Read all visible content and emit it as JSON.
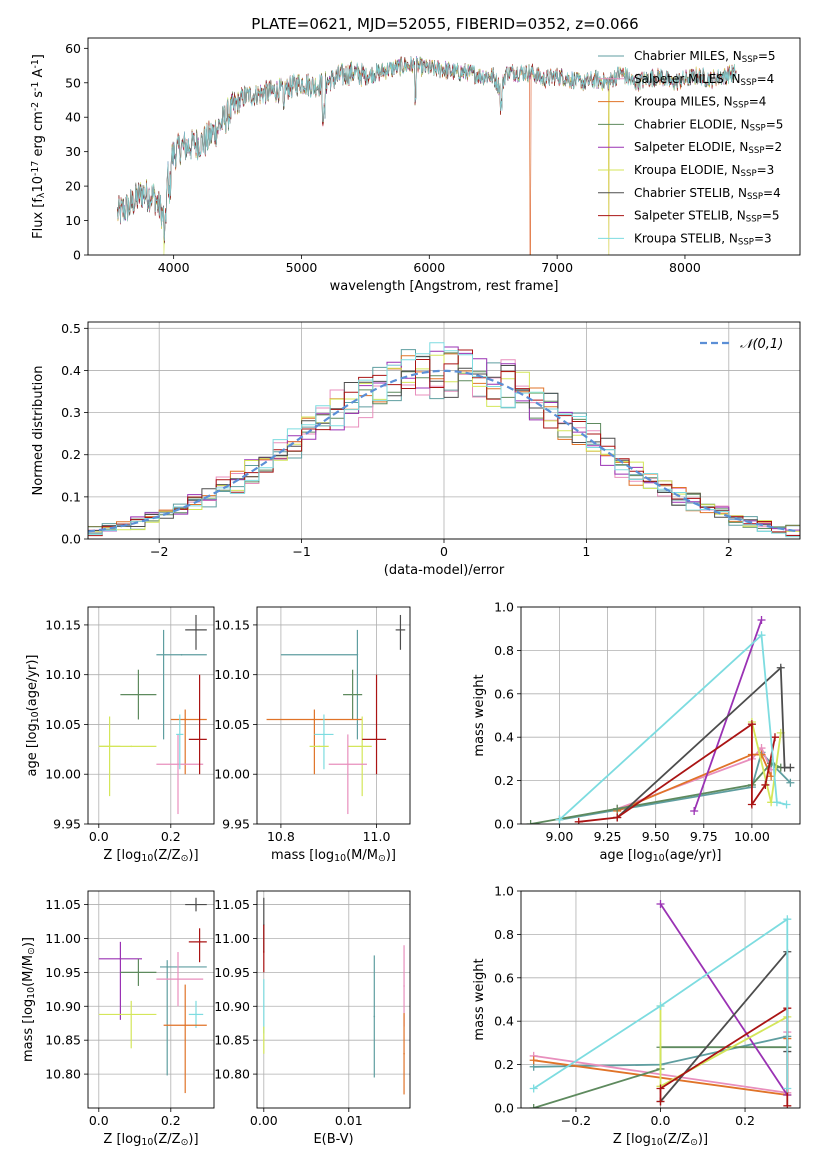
{
  "figure": {
    "title": "PLATE=0621, MJD=52055, FIBERID=0352, z=0.066"
  },
  "series_meta": [
    {
      "name": "Chabrier MILES, N$_{SSP}$=5",
      "color": "#5f9ea0"
    },
    {
      "name": "Salpeter MILES, N$_{SSP}$=4",
      "color": "#e88fbd"
    },
    {
      "name": "Kroupa MILES, N$_{SSP}$=4",
      "color": "#e07328"
    },
    {
      "name": "Chabrier ELODIE, N$_{SSP}$=5",
      "color": "#5e8a5e"
    },
    {
      "name": "Salpeter ELODIE, N$_{SSP}$=2",
      "color": "#9a32b4"
    },
    {
      "name": "Kroupa ELODIE, N$_{SSP}$=3",
      "color": "#d4e65a"
    },
    {
      "name": "Chabrier STELIB, N$_{SSP}$=4",
      "color": "#4d4d4d"
    },
    {
      "name": "Salpeter STELIB, N$_{SSP}$=5",
      "color": "#aa1414"
    },
    {
      "name": "Kroupa STELIB, N$_{SSP}$=3",
      "color": "#7ddce0"
    }
  ],
  "chart_data": [
    {
      "id": "spectrum",
      "type": "line",
      "xlabel": "wavelength [Angstrom, rest frame]",
      "ylabel": "Flux [f$_\\lambda$10$^{-17}$ erg cm$^{-2}$ s$^{-1}$ A$^{-1}$]",
      "xlim": [
        3330,
        8900
      ],
      "ylim": [
        0,
        63
      ],
      "xticks": [
        4000,
        5000,
        6000,
        7000,
        8000
      ],
      "yticks": [
        0,
        10,
        20,
        30,
        40,
        50,
        60
      ],
      "grid": false,
      "legend": "right",
      "x": [
        3560,
        3650,
        3750,
        3850,
        3920,
        3970,
        4050,
        4150,
        4250,
        4350,
        4450,
        4550,
        4700,
        4860,
        5000,
        5100,
        5200,
        5300,
        5400,
        5500,
        5600,
        5700,
        5800,
        5900,
        6000,
        6100,
        6200,
        6300,
        6400,
        6500,
        6560,
        6600,
        6700,
        6800,
        6900,
        7000,
        7100,
        7200,
        7300,
        7400,
        7500,
        7600,
        7700,
        7800,
        7900,
        8000,
        8100,
        8200,
        8300,
        8400
      ],
      "y": [
        12,
        14,
        18,
        17,
        11,
        28,
        31,
        32,
        33,
        37,
        42,
        46,
        47,
        48,
        50,
        49,
        50,
        52,
        53,
        52,
        53,
        54,
        55,
        55,
        54,
        54,
        53,
        53,
        52,
        52,
        48,
        53,
        53,
        53,
        51,
        52,
        51,
        50,
        51,
        50,
        53,
        50,
        51,
        52,
        50,
        51,
        52,
        51,
        52,
        53
      ],
      "dropouts": [
        {
          "x": 3925,
          "series": [
            5
          ]
        },
        {
          "x": 6790,
          "series": [
            1,
            2
          ]
        },
        {
          "x": 7405,
          "series": [
            2,
            5
          ]
        }
      ]
    },
    {
      "id": "residuals",
      "type": "histogram",
      "xlabel": "(data-model)/error",
      "ylabel": "Normed distribution",
      "xlim": [
        -2.5,
        2.5
      ],
      "ylim": [
        0,
        0.515
      ],
      "xticks": [
        -2,
        -1,
        0,
        1,
        2
      ],
      "yticks": [
        0.0,
        0.1,
        0.2,
        0.3,
        0.4,
        0.5
      ],
      "grid": true,
      "bin_width": 0.1,
      "reference": {
        "label": "$\\mathcal{N}(0,1)$",
        "color": "#5b8fd6",
        "mu": 0,
        "sigma": 1
      }
    },
    {
      "id": "age-vs-Z",
      "type": "scatter",
      "xlabel": "Z [log$_{10}$($Z/Z_\\odot$)]",
      "ylabel": "age  [log$_{10}$($age/yr$)]",
      "xlim": [
        -0.03,
        0.32
      ],
      "ylim": [
        9.95,
        10.168
      ],
      "xticks": [
        0.0,
        0.2
      ],
      "yticks": [
        9.95,
        10.0,
        10.05,
        10.1,
        10.15
      ],
      "grid": true,
      "points": [
        {
          "s": 3,
          "x": 0.11,
          "y": 10.08,
          "xe": [
            0.05,
            0.05
          ],
          "ye": [
            0.025,
            0.025
          ]
        },
        {
          "s": 5,
          "x": 0.03,
          "y": 10.028,
          "xe": [
            0.03,
            0.03
          ],
          "ye": [
            0.05,
            0.03
          ]
        },
        {
          "s": 5,
          "x": 0.09,
          "y": 10.028,
          "xe": [
            0.09,
            0.07
          ],
          "ye": [
            0,
            0
          ]
        },
        {
          "s": 0,
          "x": 0.23,
          "y": 10.12,
          "xe": [
            0.07,
            0.07
          ],
          "ye": [
            0,
            0
          ]
        },
        {
          "s": 0,
          "x": 0.18,
          "y": 10.12,
          "xe": [
            0,
            0
          ],
          "ye": [
            0.085,
            0.025
          ]
        },
        {
          "s": 6,
          "x": 0.27,
          "y": 10.145,
          "xe": [
            0.03,
            0.03
          ],
          "ye": [
            0.02,
            0.015
          ]
        },
        {
          "s": 2,
          "x": 0.24,
          "y": 10.055,
          "xe": [
            0.04,
            0.06
          ],
          "ye": [
            0.055,
            0.01
          ]
        },
        {
          "s": 1,
          "x": 0.22,
          "y": 10.01,
          "xe": [
            0.06,
            0.07
          ],
          "ye": [
            0.05,
            0.03
          ]
        },
        {
          "s": 7,
          "x": 0.28,
          "y": 10.035,
          "xe": [
            0.03,
            0.02
          ],
          "ye": [
            0.035,
            0.065
          ]
        },
        {
          "s": 8,
          "x": 0.225,
          "y": 10.04,
          "xe": [
            0.01,
            0.01
          ],
          "ye": [
            0.035,
            0.02
          ]
        }
      ]
    },
    {
      "id": "age-vs-mass",
      "type": "scatter",
      "xlabel": "mass [log$_{10}$($M/M_\\odot$)]",
      "ylabel": "",
      "xlim": [
        10.75,
        11.07
      ],
      "ylim": [
        9.95,
        10.168
      ],
      "xticks": [
        10.8,
        11.0
      ],
      "yticks": [
        9.95,
        10.0,
        10.05,
        10.1,
        10.15
      ],
      "grid": true,
      "points": [
        {
          "s": 0,
          "x": 10.96,
          "y": 10.12,
          "xe": [
            0.16,
            0.0
          ],
          "ye": [
            0.085,
            0.025
          ]
        },
        {
          "s": 6,
          "x": 11.05,
          "y": 10.145,
          "xe": [
            0.01,
            0.01
          ],
          "ye": [
            0.02,
            0.015
          ]
        },
        {
          "s": 3,
          "x": 10.95,
          "y": 10.08,
          "xe": [
            0.02,
            0.02
          ],
          "ye": [
            0.025,
            0.025
          ]
        },
        {
          "s": 2,
          "x": 10.87,
          "y": 10.055,
          "xe": [
            0.1,
            0.1
          ],
          "ye": [
            0.055,
            0.01
          ]
        },
        {
          "s": 8,
          "x": 10.89,
          "y": 10.04,
          "xe": [
            0.02,
            0.02
          ],
          "ye": [
            0.035,
            0.02
          ]
        },
        {
          "s": 5,
          "x": 10.97,
          "y": 10.028,
          "xe": [
            0.03,
            0.02
          ],
          "ye": [
            0.05,
            0.03
          ]
        },
        {
          "s": 5,
          "x": 10.88,
          "y": 10.028,
          "xe": [
            0.02,
            0.02
          ],
          "ye": [
            0,
            0
          ]
        },
        {
          "s": 7,
          "x": 11.0,
          "y": 10.035,
          "xe": [
            0.03,
            0.02
          ],
          "ye": [
            0.035,
            0.065
          ]
        },
        {
          "s": 1,
          "x": 10.94,
          "y": 10.01,
          "xe": [
            0.04,
            0.04
          ],
          "ye": [
            0.05,
            0.03
          ]
        }
      ]
    },
    {
      "id": "weight-vs-age",
      "type": "line",
      "xlabel": "age  [log$_{10}$($age/yr$)]",
      "ylabel": "mass weight",
      "xlim": [
        8.8,
        10.25
      ],
      "ylim": [
        0,
        1.0
      ],
      "xticks": [
        9.0,
        9.25,
        9.5,
        9.75,
        10.0
      ],
      "yticks": [
        0.0,
        0.2,
        0.4,
        0.6,
        0.8,
        1.0
      ],
      "grid": true,
      "series": [
        {
          "s": 0,
          "x": [
            9.0,
            10.0,
            10.05,
            10.1,
            10.2
          ],
          "y": [
            0.02,
            0.17,
            0.33,
            0.28,
            0.19
          ]
        },
        {
          "s": 1,
          "x": [
            9.3,
            10.0,
            10.05,
            10.1
          ],
          "y": [
            0.07,
            0.3,
            0.35,
            0.25
          ]
        },
        {
          "s": 2,
          "x": [
            9.3,
            10.0,
            10.05,
            10.1
          ],
          "y": [
            0.06,
            0.32,
            0.32,
            0.22
          ]
        },
        {
          "s": 3,
          "x": [
            8.85,
            9.3,
            10.0,
            10.1,
            10.15
          ],
          "y": [
            0.0,
            0.07,
            0.18,
            0.28,
            0.26
          ]
        },
        {
          "s": 4,
          "x": [
            9.7,
            10.05
          ],
          "y": [
            0.06,
            0.94
          ]
        },
        {
          "s": 5,
          "x": [
            10.0,
            10.1,
            10.15
          ],
          "y": [
            0.47,
            0.1,
            0.42
          ]
        },
        {
          "s": 6,
          "x": [
            9.3,
            10.15,
            10.17,
            10.2
          ],
          "y": [
            0.03,
            0.72,
            0.26,
            0.26
          ]
        },
        {
          "s": 7,
          "x": [
            9.1,
            9.3,
            10.0,
            10.0,
            10.07,
            10.12
          ],
          "y": [
            0.01,
            0.03,
            0.46,
            0.09,
            0.18,
            0.4
          ]
        },
        {
          "s": 8,
          "x": [
            9.0,
            10.05,
            10.13,
            10.18
          ],
          "y": [
            0.02,
            0.87,
            0.1,
            0.09
          ]
        }
      ]
    },
    {
      "id": "mass-vs-Z",
      "type": "scatter",
      "xlabel": "Z [log$_{10}$($Z/Z_\\odot$)]",
      "ylabel": "mass [log$_{10}$($M/M_\\odot$)]",
      "xlim": [
        -0.03,
        0.32
      ],
      "ylim": [
        10.75,
        11.07
      ],
      "xticks": [
        0.0,
        0.2
      ],
      "yticks": [
        10.8,
        10.85,
        10.9,
        10.95,
        11.0,
        11.05
      ],
      "grid": true,
      "points": [
        {
          "s": 6,
          "x": 0.27,
          "y": 11.05,
          "xe": [
            0.03,
            0.03
          ],
          "ye": [
            0.01,
            0.01
          ]
        },
        {
          "s": 7,
          "x": 0.28,
          "y": 10.995,
          "xe": [
            0.03,
            0.02
          ],
          "ye": [
            0.03,
            0.02
          ]
        },
        {
          "s": 4,
          "x": 0.06,
          "y": 10.97,
          "xe": [
            0.06,
            0.06
          ],
          "ye": [
            0.09,
            0.025
          ]
        },
        {
          "s": 3,
          "x": 0.11,
          "y": 10.95,
          "xe": [
            0.05,
            0.05
          ],
          "ye": [
            0.02,
            0.02
          ]
        },
        {
          "s": 0,
          "x": 0.19,
          "y": 10.958,
          "xe": [
            0.02,
            0.11
          ],
          "ye": [
            0.16,
            0.01
          ]
        },
        {
          "s": 1,
          "x": 0.22,
          "y": 10.94,
          "xe": [
            0.06,
            0.07
          ],
          "ye": [
            0.04,
            0.04
          ]
        },
        {
          "s": 5,
          "x": 0.09,
          "y": 10.888,
          "xe": [
            0.09,
            0.07
          ],
          "ye": [
            0.05,
            0.02
          ]
        },
        {
          "s": 8,
          "x": 0.27,
          "y": 10.888,
          "xe": [
            0.02,
            0.02
          ],
          "ye": [
            0.02,
            0.02
          ]
        },
        {
          "s": 2,
          "x": 0.24,
          "y": 10.872,
          "xe": [
            0.06,
            0.06
          ],
          "ye": [
            0.1,
            0.06
          ]
        }
      ]
    },
    {
      "id": "mass-vs-EBV",
      "type": "scatter",
      "xlabel": "E(B-V)",
      "ylabel": "",
      "xlim": [
        -0.0008,
        0.0172
      ],
      "ylim": [
        10.75,
        11.07
      ],
      "xticks": [
        0.0,
        0.01
      ],
      "yticks": [
        10.8,
        10.85,
        10.9,
        10.95,
        11.0,
        11.05
      ],
      "grid": true,
      "points": [
        {
          "s": 6,
          "x": 0.0,
          "y": 11.02,
          "xe": [
            0,
            0
          ],
          "ye": [
            0.04,
            0.04
          ]
        },
        {
          "s": 7,
          "x": 0.0,
          "y": 10.98,
          "xe": [
            0,
            0
          ],
          "ye": [
            0.03,
            0.04
          ]
        },
        {
          "s": 8,
          "x": 0.0,
          "y": 10.9,
          "xe": [
            0,
            0
          ],
          "ye": [
            0.04,
            0.04
          ]
        },
        {
          "s": 5,
          "x": 0.0,
          "y": 10.85,
          "xe": [
            0,
            0
          ],
          "ye": [
            0.02,
            0.02
          ]
        },
        {
          "s": 0,
          "x": 0.013,
          "y": 10.885,
          "xe": [
            0,
            0
          ],
          "ye": [
            0.09,
            0.09
          ]
        },
        {
          "s": 1,
          "x": 0.0165,
          "y": 10.93,
          "xe": [
            0,
            0
          ],
          "ye": [
            0.06,
            0.06
          ]
        },
        {
          "s": 2,
          "x": 0.0165,
          "y": 10.83,
          "xe": [
            0,
            0
          ],
          "ye": [
            0.06,
            0.06
          ]
        }
      ]
    },
    {
      "id": "weight-vs-Z",
      "type": "line",
      "xlabel": "Z [log$_{10}$($Z/Z_\\odot$)]",
      "ylabel": "mass weight",
      "xlim": [
        -0.33,
        0.33
      ],
      "ylim": [
        0,
        1.0
      ],
      "xticks": [
        -0.2,
        0.0,
        0.2
      ],
      "yticks": [
        0.0,
        0.2,
        0.4,
        0.6,
        0.8,
        1.0
      ],
      "grid": true,
      "series": [
        {
          "s": 0,
          "x": [
            -0.3,
            0.0,
            0.3,
            0.3
          ],
          "y": [
            0.19,
            0.2,
            0.33,
            0.28
          ]
        },
        {
          "s": 1,
          "x": [
            -0.3,
            0.3,
            0.3
          ],
          "y": [
            0.24,
            0.07,
            0.35
          ]
        },
        {
          "s": 2,
          "x": [
            -0.3,
            0.3,
            0.3
          ],
          "y": [
            0.22,
            0.06,
            0.32
          ]
        },
        {
          "s": 3,
          "x": [
            -0.3,
            0.0,
            0.0,
            0.3
          ],
          "y": [
            0.0,
            0.18,
            0.28,
            0.28
          ]
        },
        {
          "s": 4,
          "x": [
            0.0,
            0.3
          ],
          "y": [
            0.94,
            0.06
          ]
        },
        {
          "s": 5,
          "x": [
            0.0,
            0.0,
            0.3
          ],
          "y": [
            0.47,
            0.1,
            0.42
          ]
        },
        {
          "s": 6,
          "x": [
            0.0,
            0.3,
            0.3
          ],
          "y": [
            0.03,
            0.72,
            0.26
          ]
        },
        {
          "s": 7,
          "x": [
            0.0,
            0.0,
            0.3,
            0.3
          ],
          "y": [
            0.03,
            0.09,
            0.46,
            0.01
          ]
        },
        {
          "s": 8,
          "x": [
            -0.3,
            0.0,
            0.3,
            0.3
          ],
          "y": [
            0.09,
            0.47,
            0.87,
            0.09
          ]
        }
      ]
    }
  ]
}
